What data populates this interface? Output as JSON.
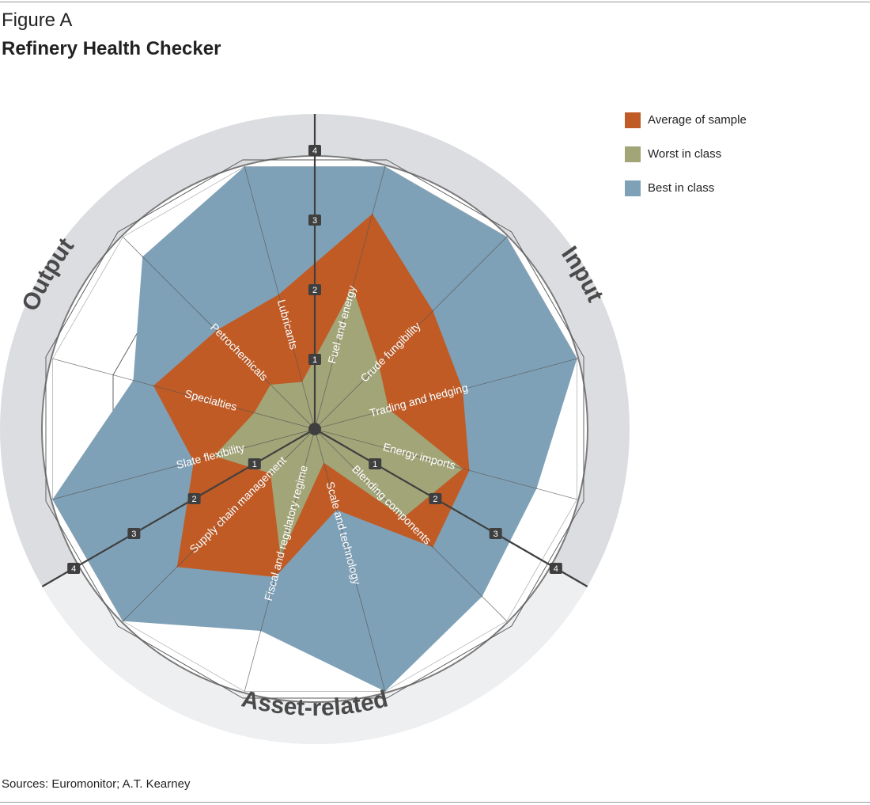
{
  "figure_label": "Figure A",
  "title": "Refinery Health Checker",
  "source": "Sources: Euromonitor; A.T. Kearney",
  "colors": {
    "ring": "#dcdde0",
    "ring_light": "#eeeff1",
    "grid": "#555555",
    "axis": "#3f3f3f",
    "tick_box": "#3f3f3f"
  },
  "chart_data": {
    "type": "radar",
    "title": "Refinery Health Checker",
    "rlim": [
      0,
      4
    ],
    "grid": true,
    "legend_position": "top-right",
    "ticks": [
      "1",
      "2",
      "3",
      "4"
    ],
    "categories": [
      "Fuel and energy",
      "Crude fungibility",
      "Trading and hedging",
      "Energy imports",
      "Blending components",
      "Scale and technology",
      "Fiscal and regulatory regime",
      "Supply chain management",
      "Slate flexibility",
      "Specialties",
      "Petrochemicals",
      "Lubricants"
    ],
    "groups": [
      {
        "name": "Input",
        "categories": [
          "Crude fungibility",
          "Trading and hedging",
          "Energy imports",
          "Blending components"
        ]
      },
      {
        "name": "Asset-related",
        "categories": [
          "Scale and technology",
          "Fiscal and regulatory regime",
          "Supply chain management",
          "Slate flexibility"
        ]
      },
      {
        "name": "Output",
        "categories": [
          "Specialties",
          "Petrochemicals",
          "Lubricants",
          "Fuel and energy"
        ]
      }
    ],
    "series": [
      {
        "name": "Best in class",
        "color": "#7fa1b7",
        "values": [
          3.9,
          3.9,
          3.9,
          3.3,
          3.4,
          3.9,
          3.0,
          3.9,
          3.9,
          2.7,
          3.5,
          3.9
        ]
      },
      {
        "name": "Average of sample",
        "color": "#c15b25",
        "values": [
          3.2,
          2.4,
          2.2,
          2.3,
          2.4,
          1.2,
          2.2,
          2.8,
          1.8,
          2.4,
          2.0,
          2.0
        ]
      },
      {
        "name": "Worst in class",
        "color": "#a2a578",
        "values": [
          2.1,
          1.3,
          1.1,
          2.2,
          1.8,
          0.5,
          1.9,
          0.9,
          1.5,
          0.9,
          0.9,
          0.7
        ]
      }
    ]
  },
  "legend": [
    {
      "label": "Average of sample",
      "color": "#c15b25"
    },
    {
      "label": "Worst in class",
      "color": "#a2a578"
    },
    {
      "label": "Best in class",
      "color": "#7fa1b7"
    }
  ]
}
